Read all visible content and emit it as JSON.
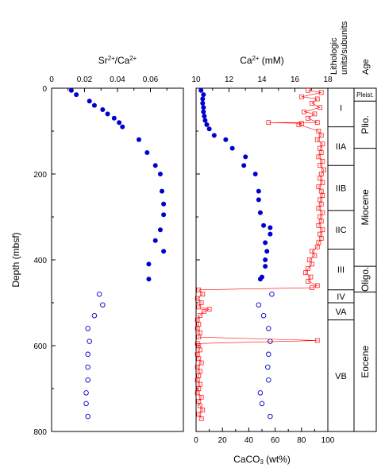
{
  "chart_data": [
    {
      "type": "scatter",
      "panel": "sr-ca-ratio",
      "xlabel_parts": [
        "Sr",
        "2+",
        "/Ca",
        "2+"
      ],
      "ylabel": "Depth (mbsf)",
      "xlim": [
        0,
        0.08
      ],
      "ylim": [
        0,
        800
      ],
      "x_ticks": [
        0,
        0.02,
        0.04,
        0.06
      ],
      "x_tick_labels": [
        "0",
        "0.02",
        "0.04",
        "0.06"
      ],
      "y_ticks": [
        0,
        200,
        400,
        600,
        800
      ],
      "y_tick_labels": [
        "0",
        "200",
        "400",
        "600",
        "800"
      ],
      "series": [
        {
          "marker": "filled-circle",
          "color": "#0000cc",
          "points": [
            [
              0.012,
              5
            ],
            [
              0.015,
              15
            ],
            [
              0.023,
              30
            ],
            [
              0.026,
              40
            ],
            [
              0.031,
              50
            ],
            [
              0.034,
              60
            ],
            [
              0.038,
              70
            ],
            [
              0.041,
              80
            ],
            [
              0.043,
              90
            ],
            [
              0.053,
              120
            ],
            [
              0.058,
              150
            ],
            [
              0.063,
              180
            ],
            [
              0.066,
              200
            ],
            [
              0.067,
              240
            ],
            [
              0.068,
              270
            ],
            [
              0.068,
              295
            ],
            [
              0.066,
              330
            ],
            [
              0.063,
              355
            ],
            [
              0.068,
              380
            ],
            [
              0.059,
              410
            ],
            [
              0.059,
              445
            ]
          ]
        },
        {
          "marker": "open-circle",
          "color": "#0000cc",
          "points": [
            [
              0.029,
              480
            ],
            [
              0.031,
              505
            ],
            [
              0.026,
              530
            ],
            [
              0.022,
              560
            ],
            [
              0.023,
              590
            ],
            [
              0.022,
              620
            ],
            [
              0.022,
              650
            ],
            [
              0.022,
              680
            ],
            [
              0.021,
              710
            ],
            [
              0.021,
              735
            ],
            [
              0.022,
              765
            ]
          ]
        }
      ]
    },
    {
      "type": "scatter",
      "panel": "calcium-and-carbonate",
      "xlabel_top_parts": [
        "Ca",
        "2+",
        " (mM)"
      ],
      "xlabel_bottom_parts": [
        "CaCO",
        "3",
        " (wt%)"
      ],
      "xlim_top": [
        10,
        18
      ],
      "xlim_bottom": [
        0,
        100
      ],
      "ylim": [
        0,
        800
      ],
      "x_top_ticks": [
        10,
        12,
        14,
        16,
        18
      ],
      "x_top_tick_labels": [
        "10",
        "12",
        "14",
        "16",
        "18"
      ],
      "x_bottom_ticks": [
        0,
        20,
        40,
        60,
        80,
        100
      ],
      "x_bottom_tick_labels": [
        "0",
        "20",
        "40",
        "60",
        "80",
        "100"
      ],
      "series": [
        {
          "axis": "top",
          "marker": "filled-circle",
          "color": "#0000cc",
          "points": [
            [
              10.3,
              5
            ],
            [
              10.45,
              15
            ],
            [
              10.4,
              25
            ],
            [
              10.4,
              35
            ],
            [
              10.45,
              45
            ],
            [
              10.45,
              55
            ],
            [
              10.5,
              65
            ],
            [
              10.55,
              75
            ],
            [
              10.65,
              85
            ],
            [
              10.8,
              95
            ],
            [
              11.1,
              110
            ],
            [
              11.8,
              120
            ],
            [
              12.2,
              140
            ],
            [
              13.0,
              160
            ],
            [
              12.9,
              180
            ],
            [
              13.6,
              200
            ],
            [
              13.8,
              240
            ],
            [
              13.8,
              260
            ],
            [
              13.9,
              290
            ],
            [
              14.1,
              320
            ],
            [
              14.5,
              325
            ],
            [
              14.3,
              380
            ],
            [
              14.2,
              360
            ],
            [
              14.5,
              340
            ],
            [
              14.2,
              415
            ],
            [
              13.9,
              445
            ],
            [
              14.0,
              440
            ],
            [
              14.2,
              400
            ]
          ]
        },
        {
          "axis": "top",
          "marker": "open-circle",
          "color": "#0000cc",
          "points": [
            [
              14.6,
              480
            ],
            [
              13.8,
              505
            ],
            [
              14.1,
              530
            ],
            [
              14.4,
              560
            ],
            [
              14.5,
              590
            ],
            [
              14.4,
              620
            ],
            [
              14.35,
              650
            ],
            [
              14.4,
              680
            ],
            [
              13.9,
              710
            ],
            [
              14.0,
              735
            ],
            [
              14.5,
              765
            ]
          ]
        },
        {
          "axis": "bottom",
          "marker": "open-square",
          "color": "#ff0000",
          "points": [
            [
              85,
              5
            ],
            [
              95,
              10
            ],
            [
              80,
              20
            ],
            [
              92,
              25
            ],
            [
              88,
              35
            ],
            [
              94,
              45
            ],
            [
              82,
              55
            ],
            [
              90,
              60
            ],
            [
              85,
              70
            ],
            [
              92,
              80
            ],
            [
              78,
              85
            ],
            [
              55,
              80
            ],
            [
              80,
              82
            ],
            [
              93,
              100
            ],
            [
              95,
              110
            ],
            [
              92,
              120
            ],
            [
              96,
              130
            ],
            [
              94,
              140
            ],
            [
              95,
              150
            ],
            [
              93,
              160
            ],
            [
              96,
              170
            ],
            [
              94,
              180
            ],
            [
              97,
              190
            ],
            [
              95,
              200
            ],
            [
              94,
              210
            ],
            [
              96,
              220
            ],
            [
              93,
              230
            ],
            [
              95,
              240
            ],
            [
              96,
              250
            ],
            [
              94,
              260
            ],
            [
              95,
              270
            ],
            [
              93,
              280
            ],
            [
              96,
              290
            ],
            [
              94,
              300
            ],
            [
              95,
              310
            ],
            [
              93,
              320
            ],
            [
              96,
              330
            ],
            [
              94,
              340
            ],
            [
              95,
              350
            ],
            [
              93,
              360
            ],
            [
              92,
              370
            ],
            [
              88,
              380
            ],
            [
              90,
              390
            ],
            [
              86,
              400
            ],
            [
              88,
              410
            ],
            [
              85,
              420
            ],
            [
              83,
              430
            ],
            [
              87,
              440
            ],
            [
              85,
              450
            ],
            [
              92,
              460
            ],
            [
              88,
              465
            ],
            [
              2,
              470
            ],
            [
              5,
              480
            ],
            [
              1,
              490
            ],
            [
              4,
              500
            ],
            [
              2,
              510
            ],
            [
              6,
              520
            ],
            [
              10,
              515
            ],
            [
              3,
              530
            ],
            [
              1,
              540
            ],
            [
              2,
              550
            ],
            [
              1,
              560
            ],
            [
              3,
              570
            ],
            [
              2,
              580
            ],
            [
              92,
              588
            ],
            [
              1,
              595
            ],
            [
              2,
              600
            ],
            [
              3,
              610
            ],
            [
              1,
              620
            ],
            [
              2,
              630
            ],
            [
              4,
              640
            ],
            [
              1,
              650
            ],
            [
              3,
              660
            ],
            [
              2,
              670
            ],
            [
              1,
              680
            ],
            [
              3,
              690
            ],
            [
              2,
              700
            ],
            [
              1,
              710
            ],
            [
              4,
              720
            ],
            [
              2,
              730
            ],
            [
              3,
              740
            ],
            [
              5,
              750
            ],
            [
              2,
              760
            ],
            [
              4,
              770
            ]
          ]
        }
      ]
    }
  ],
  "units_column": {
    "title_lines": [
      "Lithologic",
      "units/subunits"
    ],
    "units": [
      {
        "label": "I",
        "from": 0,
        "to": 90
      },
      {
        "label": "IIA",
        "from": 90,
        "to": 180
      },
      {
        "label": "IIB",
        "from": 180,
        "to": 285
      },
      {
        "label": "IIC",
        "from": 285,
        "to": 375
      },
      {
        "label": "III",
        "from": 375,
        "to": 470
      },
      {
        "label": "IV",
        "from": 470,
        "to": 500
      },
      {
        "label": "VA",
        "from": 500,
        "to": 540
      },
      {
        "label": "VB",
        "from": 540,
        "to": 800
      }
    ]
  },
  "age_column": {
    "title": "Age",
    "ages": [
      {
        "label": "Pleist.",
        "from": 0,
        "to": 30
      },
      {
        "label": "Plio.",
        "from": 30,
        "to": 140
      },
      {
        "label": "Miocene",
        "from": 140,
        "to": 415
      },
      {
        "label": "Oligo.",
        "from": 415,
        "to": 475
      },
      {
        "label": "Eocene",
        "from": 475,
        "to": 800
      }
    ]
  }
}
